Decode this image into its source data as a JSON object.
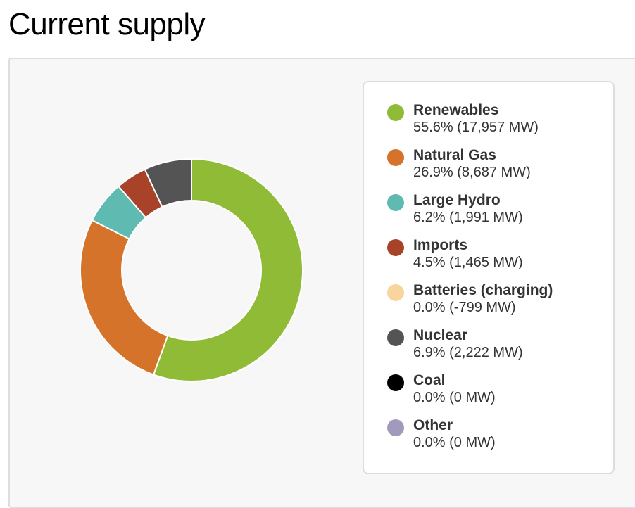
{
  "title": "Current supply",
  "chart_data": {
    "type": "pie",
    "variant": "donut",
    "legend_position": "right",
    "series": [
      {
        "name": "Renewables",
        "percent": 55.6,
        "mw": 17957,
        "label": "55.6% (17,957 MW)",
        "color": "#8fbb37"
      },
      {
        "name": "Natural Gas",
        "percent": 26.9,
        "mw": 8687,
        "label": "26.9% (8,687 MW)",
        "color": "#d6732b"
      },
      {
        "name": "Large Hydro",
        "percent": 6.2,
        "mw": 1991,
        "label": "6.2% (1,991 MW)",
        "color": "#5fbab1"
      },
      {
        "name": "Imports",
        "percent": 4.5,
        "mw": 1465,
        "label": "4.5% (1,465 MW)",
        "color": "#a8432a"
      },
      {
        "name": "Batteries (charging)",
        "percent": 0.0,
        "mw": -799,
        "label": "0.0% (-799 MW)",
        "color": "#f7d59c"
      },
      {
        "name": "Nuclear",
        "percent": 6.9,
        "mw": 2222,
        "label": "6.9% (2,222 MW)",
        "color": "#545454"
      },
      {
        "name": "Coal",
        "percent": 0.0,
        "mw": 0,
        "label": "0.0% (0 MW)",
        "color": "#000000"
      },
      {
        "name": "Other",
        "percent": 0.0,
        "mw": 0,
        "label": "0.0% (0 MW)",
        "color": "#a19abb"
      }
    ]
  }
}
